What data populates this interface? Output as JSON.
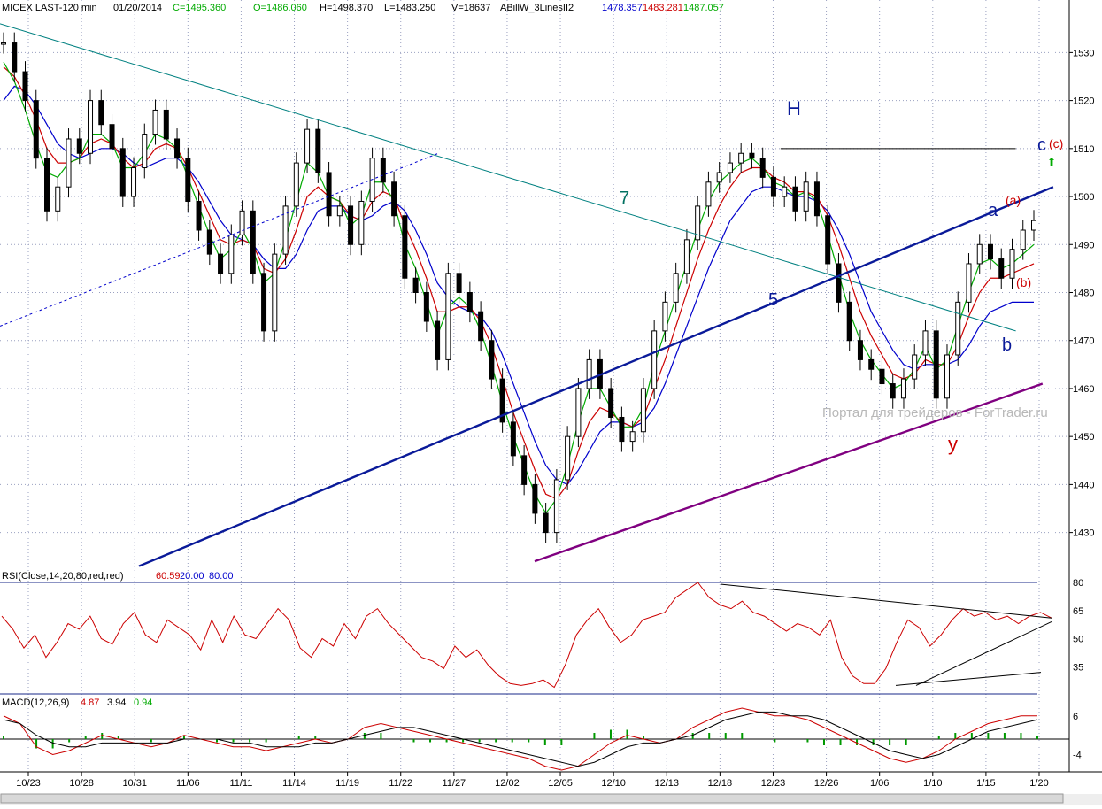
{
  "header": {
    "symbol": "MICEX LAST-120 min",
    "date": "01/20/2014",
    "close": "C=1495.360",
    "open": "O=1486.060",
    "high": "H=1498.370",
    "low": "L=1483.250",
    "volume": "V=18637",
    "indicator": "ABillW_3LinesII2",
    "line_blue": "1478.357",
    "line_red": "1483.281",
    "line_green": "1487.057"
  },
  "watermark": "Портал для трейдеров - ForTrader.ru",
  "annotations": {
    "H": "H",
    "seven": "7",
    "five": "5",
    "a": "a",
    "b": "b",
    "c": "c",
    "c_paren": "(c)",
    "a_paren": "(a)",
    "b_paren": "(b)",
    "y": "y",
    "arrow": "⬆"
  },
  "rsi_label": {
    "name": "RSI(Close,14,20,80,red,red)",
    "value": "60.59",
    "low": "20.00",
    "high": "80.00"
  },
  "macd_label": {
    "name": "MACD(12,26,9)",
    "macd": "4.87",
    "signal": "3.94",
    "hist": "0.94"
  },
  "colors": {
    "green": "#00aa00",
    "red": "#cc0000",
    "blue": "#0000cc",
    "teal": "#008080",
    "navy": "#0a1a99",
    "purple": "#800080"
  },
  "chart_data": [
    {
      "type": "candlestick",
      "title": "MICEX LAST-120 min",
      "ylim": [
        1422,
        1538
      ],
      "y_ticks": [
        1430,
        1440,
        1450,
        1460,
        1470,
        1480,
        1490,
        1500,
        1510,
        1520,
        1530
      ],
      "x_tick_labels": [
        "10/23",
        "10/28",
        "10/31",
        "11/06",
        "11/11",
        "11/14",
        "11/19",
        "11/22",
        "11/27",
        "12/02",
        "12/05",
        "12/10",
        "12/13",
        "12/18",
        "12/23",
        "12/26",
        "1/06",
        "1/10",
        "1/15",
        "1/20"
      ],
      "close_path": [
        1532,
        1526,
        1520,
        1508,
        1497,
        1502,
        1512,
        1509,
        1520,
        1515,
        1510,
        1500,
        1506,
        1513,
        1518,
        1512,
        1508,
        1499,
        1493,
        1488,
        1484,
        1492,
        1497,
        1484,
        1472,
        1488,
        1498,
        1507,
        1514,
        1505,
        1496,
        1498,
        1490,
        1499,
        1508,
        1503,
        1496,
        1483,
        1480,
        1474,
        1466,
        1484,
        1480,
        1476,
        1470,
        1462,
        1453,
        1446,
        1440,
        1434,
        1430,
        1441,
        1450,
        1460,
        1466,
        1460,
        1454,
        1449,
        1451,
        1460,
        1472,
        1478,
        1484,
        1491,
        1498,
        1503,
        1505,
        1507,
        1509,
        1508,
        1504,
        1500,
        1502,
        1497,
        1503,
        1496,
        1486,
        1478,
        1470,
        1466,
        1464,
        1461,
        1458,
        1462,
        1467,
        1472,
        1458,
        1467,
        1478,
        1486,
        1490,
        1487,
        1483,
        1489,
        1493,
        1495
      ],
      "lines": {
        "green": [
          1528,
          1524,
          1518,
          1511,
          1505,
          1504,
          1507,
          1508,
          1513,
          1513,
          1511,
          1506,
          1506,
          1509,
          1513,
          1512,
          1510,
          1504,
          1498,
          1492,
          1487,
          1489,
          1493,
          1489,
          1482,
          1484,
          1491,
          1499,
          1507,
          1505,
          1500,
          1499,
          1494,
          1496,
          1503,
          1503,
          1499,
          1490,
          1485,
          1478,
          1471,
          1477,
          1479,
          1477,
          1472,
          1465,
          1457,
          1450,
          1444,
          1438,
          1434,
          1437,
          1444,
          1453,
          1460,
          1460,
          1456,
          1452,
          1452,
          1456,
          1465,
          1472,
          1479,
          1486,
          1493,
          1499,
          1503,
          1505,
          1507,
          1508,
          1506,
          1503,
          1502,
          1500,
          1501,
          1499,
          1492,
          1484,
          1476,
          1470,
          1466,
          1463,
          1460,
          1461,
          1464,
          1469,
          1464,
          1466,
          1473,
          1480,
          1486,
          1487,
          1485,
          1486,
          1488,
          1490
        ],
        "red": [
          1527,
          1525,
          1521,
          1516,
          1510,
          1507,
          1507,
          1508,
          1511,
          1512,
          1511,
          1508,
          1506,
          1507,
          1510,
          1511,
          1510,
          1506,
          1501,
          1496,
          1491,
          1490,
          1491,
          1490,
          1485,
          1484,
          1487,
          1493,
          1500,
          1502,
          1500,
          1499,
          1496,
          1495,
          1499,
          1501,
          1500,
          1494,
          1489,
          1483,
          1476,
          1476,
          1477,
          1477,
          1474,
          1469,
          1462,
          1455,
          1449,
          1443,
          1438,
          1437,
          1440,
          1447,
          1453,
          1456,
          1455,
          1453,
          1452,
          1454,
          1460,
          1466,
          1473,
          1480,
          1487,
          1493,
          1498,
          1502,
          1505,
          1506,
          1506,
          1504,
          1503,
          1501,
          1501,
          1500,
          1496,
          1490,
          1483,
          1476,
          1471,
          1467,
          1463,
          1462,
          1463,
          1466,
          1465,
          1465,
          1469,
          1475,
          1480,
          1483,
          1483,
          1484,
          1485,
          1486
        ],
        "blue": [
          1520,
          1523,
          1522,
          1519,
          1515,
          1511,
          1509,
          1508,
          1509,
          1510,
          1510,
          1509,
          1507,
          1506,
          1507,
          1508,
          1508,
          1506,
          1503,
          1499,
          1495,
          1492,
          1491,
          1490,
          1487,
          1485,
          1485,
          1488,
          1493,
          1497,
          1498,
          1498,
          1496,
          1495,
          1496,
          1498,
          1499,
          1497,
          1493,
          1488,
          1482,
          1479,
          1477,
          1476,
          1475,
          1472,
          1467,
          1461,
          1455,
          1449,
          1444,
          1441,
          1440,
          1443,
          1447,
          1451,
          1453,
          1453,
          1452,
          1453,
          1456,
          1461,
          1467,
          1473,
          1479,
          1485,
          1490,
          1495,
          1498,
          1501,
          1502,
          1502,
          1501,
          1500,
          1500,
          1499,
          1497,
          1493,
          1488,
          1482,
          1476,
          1472,
          1468,
          1465,
          1464,
          1465,
          1465,
          1465,
          1466,
          1469,
          1473,
          1476,
          1477,
          1478,
          1478,
          1478
        ]
      },
      "trendlines": [
        {
          "name": "7",
          "x1_frac": 0.0,
          "y1": 1536,
          "x2_frac": 0.95,
          "y2": 1472
        },
        {
          "name": "5",
          "x1_frac": 0.13,
          "y1": 1423,
          "x2_frac": 0.985,
          "y2": 1502
        },
        {
          "name": "support",
          "x1_frac": 0.5,
          "y1": 1424,
          "x2_frac": 0.975,
          "y2": 1461
        },
        {
          "name": "dotted",
          "x1_frac": 0.0,
          "y1": 1473,
          "x2_frac": 0.41,
          "y2": 1509
        },
        {
          "name": "H-level",
          "x1_frac": 0.73,
          "y1": 1510,
          "x2_frac": 0.95,
          "y2": 1510
        }
      ]
    },
    {
      "type": "line",
      "title": "RSI(Close,14,20,80,red,red)",
      "ylim": [
        20,
        80
      ],
      "y_ticks": [
        35,
        50,
        65,
        80
      ],
      "values": [
        62,
        55,
        45,
        52,
        40,
        48,
        58,
        55,
        62,
        50,
        47,
        58,
        64,
        52,
        48,
        60,
        56,
        52,
        44,
        60,
        48,
        62,
        52,
        50,
        58,
        66,
        60,
        45,
        40,
        50,
        46,
        58,
        50,
        62,
        66,
        58,
        52,
        46,
        40,
        38,
        34,
        46,
        40,
        44,
        36,
        30,
        26,
        25,
        26,
        28,
        24,
        36,
        52,
        60,
        66,
        56,
        48,
        52,
        60,
        62,
        64,
        72,
        76,
        80,
        72,
        68,
        66,
        70,
        64,
        62,
        58,
        54,
        58,
        56,
        52,
        60,
        40,
        30,
        26,
        26,
        34,
        48,
        60,
        56,
        46,
        52,
        60,
        66,
        62,
        64,
        60,
        62,
        58,
        62,
        64,
        61
      ]
    },
    {
      "type": "line",
      "title": "MACD(12,26,9)",
      "ylim": [
        -8,
        8
      ],
      "y_ticks": [
        -4,
        6
      ],
      "macd": [
        6,
        4,
        -2,
        -4,
        -3,
        -1,
        1,
        0,
        -1,
        -2,
        -1,
        1,
        0,
        -1,
        -2,
        -2,
        -3,
        -2,
        -1,
        0,
        -1,
        0,
        3,
        4,
        3,
        2,
        1,
        0,
        -1,
        -2,
        -3,
        -4,
        -5,
        -7,
        -8,
        -7,
        -4,
        -1,
        1,
        0,
        -1,
        0,
        3,
        5,
        7,
        8,
        7,
        6,
        6,
        5,
        3,
        1,
        -1,
        -3,
        -5,
        -6,
        -5,
        -3,
        0,
        2,
        4,
        5,
        6,
        6
      ],
      "signal": [
        5,
        4,
        1,
        -1,
        -2,
        -2,
        -1,
        -1,
        -1,
        -1,
        -1,
        0,
        0,
        0,
        -1,
        -1,
        -2,
        -2,
        -2,
        -1,
        -1,
        0,
        1,
        2,
        3,
        3,
        2,
        1,
        0,
        -1,
        -2,
        -3,
        -4,
        -5,
        -6,
        -7,
        -6,
        -4,
        -2,
        -1,
        -1,
        0,
        1,
        3,
        5,
        6,
        7,
        7,
        6,
        6,
        5,
        3,
        1,
        -1,
        -3,
        -4,
        -5,
        -4,
        -2,
        0,
        2,
        3,
        4,
        5
      ]
    }
  ]
}
